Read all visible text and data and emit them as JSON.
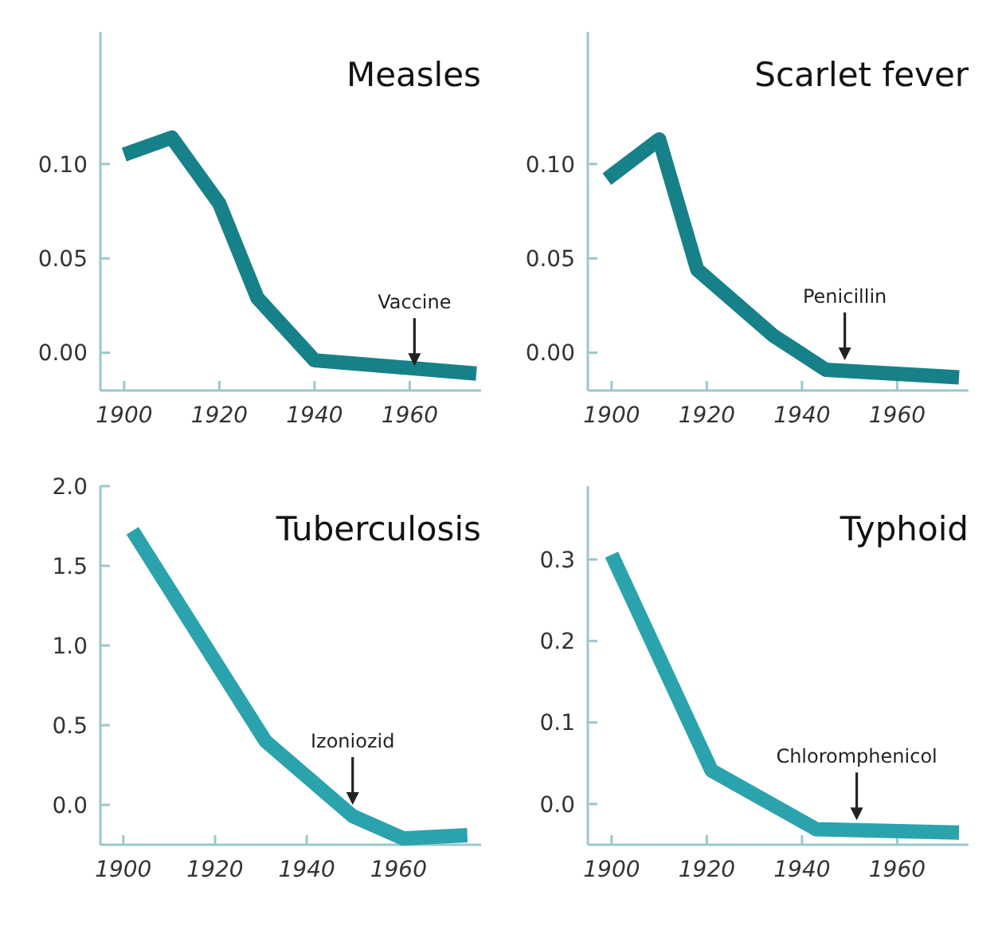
{
  "chart_data": [
    {
      "type": "line",
      "title": "Measles",
      "x": [
        1900,
        1910,
        1920,
        1928,
        1940,
        1974
      ],
      "series": [
        {
          "color": "#17818a",
          "values": [
            0.105,
            0.114,
            0.079,
            0.029,
            -0.004,
            -0.011
          ]
        }
      ],
      "xlim": [
        1895,
        1975
      ],
      "xticks": [
        1900,
        1920,
        1940,
        1960
      ],
      "ylim": [
        -0.02,
        0.17
      ],
      "yticks": [
        {
          "value": 0,
          "label": "0.00"
        },
        {
          "value": 0.05,
          "label": "0.05"
        },
        {
          "value": 0.1,
          "label": "0.10"
        }
      ],
      "grid": false,
      "marker": "none",
      "annotations": [
        {
          "text": "Vaccine",
          "x": 1961,
          "y": -0.007
        }
      ]
    },
    {
      "type": "line",
      "title": "Scarlet fever",
      "x": [
        1899,
        1910,
        1918,
        1934,
        1945,
        1973
      ],
      "series": [
        {
          "color": "#17818a",
          "values": [
            0.092,
            0.113,
            0.044,
            0.009,
            -0.009,
            -0.013
          ]
        }
      ],
      "xlim": [
        1895,
        1975
      ],
      "xticks": [
        1900,
        1920,
        1940,
        1960
      ],
      "ylim": [
        -0.02,
        0.17
      ],
      "yticks": [
        {
          "value": 0,
          "label": "0.00"
        },
        {
          "value": 0.05,
          "label": "0.05"
        },
        {
          "value": 0.1,
          "label": "0.10"
        }
      ],
      "grid": false,
      "marker": "none",
      "annotations": [
        {
          "text": "Penicillin",
          "x": 1949,
          "y": -0.004
        }
      ]
    },
    {
      "type": "line",
      "title": "Tuberculosis",
      "x": [
        1902,
        1931,
        1950,
        1961,
        1975
      ],
      "series": [
        {
          "color": "#2ba3ad",
          "values": [
            1.72,
            0.4,
            -0.07,
            -0.21,
            -0.19
          ]
        }
      ],
      "xlim": [
        1895,
        1978
      ],
      "xticks": [
        1900,
        1920,
        1940,
        1960
      ],
      "ylim": [
        -0.25,
        2.0
      ],
      "yticks": [
        {
          "value": 0,
          "label": "0.0"
        },
        {
          "value": 0.5,
          "label": "0.5"
        },
        {
          "value": 1,
          "label": "1.0"
        },
        {
          "value": 1.5,
          "label": "1.5"
        },
        {
          "value": 2,
          "label": "2.0"
        }
      ],
      "grid": false,
      "marker": "none",
      "annotations": [
        {
          "text": "Izoniozid",
          "x": 1950,
          "y": 0.0
        }
      ]
    },
    {
      "type": "line",
      "title": "Typhoid",
      "x": [
        1900,
        1921,
        1943,
        1973
      ],
      "series": [
        {
          "color": "#2ba3ad",
          "values": [
            0.306,
            0.041,
            -0.031,
            -0.035
          ]
        }
      ],
      "xlim": [
        1895,
        1975
      ],
      "xticks": [
        1900,
        1920,
        1940,
        1960
      ],
      "ylim": [
        -0.05,
        0.39
      ],
      "yticks": [
        {
          "value": 0,
          "label": "0.0"
        },
        {
          "value": 0.1,
          "label": "0.1"
        },
        {
          "value": 0.2,
          "label": "0.2"
        },
        {
          "value": 0.3,
          "label": "0.3"
        }
      ],
      "grid": false,
      "marker": "none",
      "annotations": [
        {
          "text": "Chloromphenicol",
          "x": 1951.5,
          "y": -0.02
        }
      ]
    }
  ]
}
